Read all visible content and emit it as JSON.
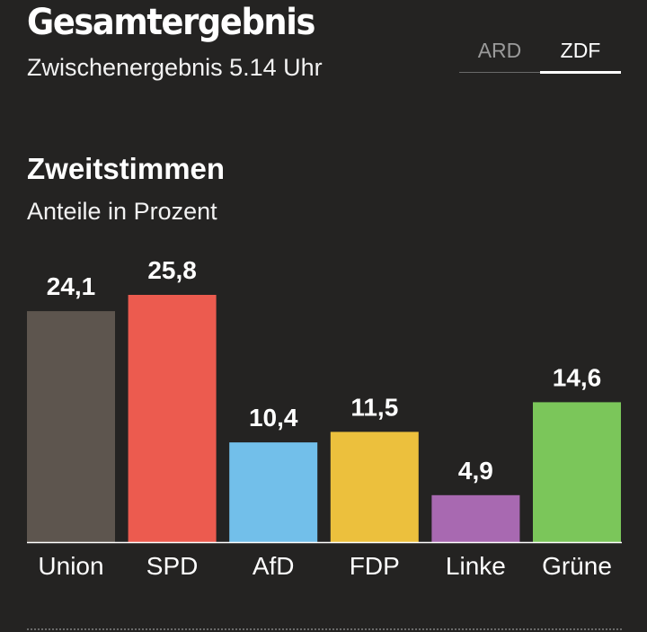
{
  "header": {
    "title": "Gesamtergebnis",
    "subtitle": "Zwischenergebnis 5.14 Uhr"
  },
  "tabs": [
    {
      "label": "ARD",
      "active": false
    },
    {
      "label": "ZDF",
      "active": true
    }
  ],
  "chart_section": {
    "title": "Zweitstimmen",
    "subtitle": "Anteile in Prozent"
  },
  "chart_data": {
    "type": "bar",
    "title": "Zweitstimmen",
    "subtitle": "Anteile in Prozent",
    "xlabel": "",
    "ylabel": "",
    "grid": false,
    "categories": [
      "Union",
      "SPD",
      "AfD",
      "FDP",
      "Linke",
      "Grüne"
    ],
    "values": [
      24.1,
      25.8,
      10.4,
      11.5,
      4.9,
      14.6
    ],
    "value_labels": [
      "24,1",
      "25,8",
      "10,4",
      "11,5",
      "4,9",
      "14,6"
    ],
    "colors": [
      "#5d554e",
      "#ec5b4f",
      "#72bfea",
      "#ecc03d",
      "#a869b1",
      "#7bc65a"
    ],
    "ylim": [
      0,
      25.8
    ]
  }
}
